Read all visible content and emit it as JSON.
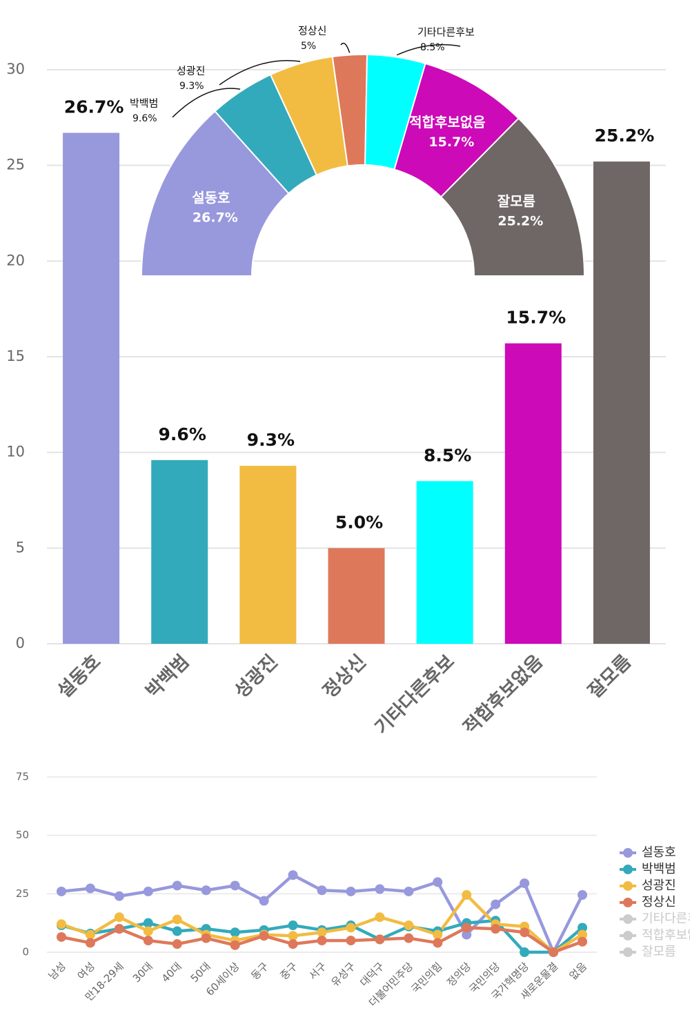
{
  "chart_data": [
    {
      "type": "bar",
      "categories": [
        "설동호",
        "박백범",
        "성광진",
        "정상신",
        "기타다른후보",
        "적합후보없음",
        "잘모름"
      ],
      "values": [
        26.7,
        9.6,
        9.3,
        5.0,
        8.5,
        15.7,
        25.2
      ],
      "value_labels": [
        "26.7%",
        "9.6%",
        "9.3%",
        "5.0%",
        "8.5%",
        "15.7%",
        "25.2%"
      ],
      "colors": [
        "#9898dd",
        "#33aabb",
        "#f2bc42",
        "#de785a",
        "#00ffff",
        "#cc0ab8",
        "#6f6765"
      ],
      "ylim": [
        0,
        30
      ],
      "yticks": [
        0,
        5,
        10,
        15,
        20,
        25,
        30
      ],
      "grid": true
    },
    {
      "type": "pie",
      "shape": "half-donut",
      "categories": [
        "설동호",
        "박백범",
        "성광진",
        "정상신",
        "기타다른후보",
        "적합후보없음",
        "잘모름"
      ],
      "values": [
        26.7,
        9.6,
        9.3,
        5,
        8.5,
        15.7,
        25.2
      ],
      "value_labels": [
        "26.7%",
        "9.6%",
        "9.3%",
        "5%",
        "8.5%",
        "15.7%",
        "25.2%"
      ],
      "colors": [
        "#9898dd",
        "#33aabb",
        "#f2bc42",
        "#de785a",
        "#00ffff",
        "#cc0ab8",
        "#6f6765"
      ]
    },
    {
      "type": "line",
      "categories": [
        "남성",
        "여성",
        "만18-29세",
        "30대",
        "40대",
        "50대",
        "60세이상",
        "동구",
        "중구",
        "서구",
        "유성구",
        "대덕구",
        "더불어민주당",
        "국민의힘",
        "정의당",
        "국민의당",
        "국가혁명당",
        "새로운물결",
        "없음"
      ],
      "series": [
        {
          "name": "설동호",
          "color": "#9898dd",
          "values": [
            26,
            27.3,
            24,
            26,
            28.5,
            26.5,
            28.5,
            22,
            33,
            26.5,
            26,
            27,
            26,
            30,
            7.5,
            20.5,
            29.5,
            0,
            24.5
          ]
        },
        {
          "name": "박백범",
          "color": "#33aabb",
          "values": [
            11.5,
            8,
            10,
            12.5,
            9,
            10,
            8.5,
            9.5,
            11.5,
            9.5,
            11.5,
            5.5,
            11,
            9,
            12.5,
            13.5,
            0,
            0,
            10.5
          ]
        },
        {
          "name": "성광진",
          "color": "#f2bc42",
          "values": [
            12,
            7.5,
            15,
            9,
            14,
            7.5,
            5,
            7.5,
            7,
            8.5,
            10.5,
            15,
            11.5,
            7.5,
            24.5,
            12,
            11,
            0,
            7.5
          ]
        },
        {
          "name": "정상신",
          "color": "#de785a",
          "values": [
            6.5,
            4,
            10,
            5,
            3.5,
            6,
            3,
            7,
            3.5,
            5,
            5,
            5.5,
            6,
            4,
            10.5,
            10,
            8.5,
            0,
            4.5
          ]
        },
        {
          "name": "기타다른후보",
          "color": "#00ffff",
          "visible": false
        },
        {
          "name": "적합후보없음",
          "color": "#cc0ab8",
          "visible": false
        },
        {
          "name": "잘모름",
          "color": "#6f6765",
          "visible": false
        }
      ],
      "ylim": [
        0,
        75
      ],
      "yticks": [
        0,
        25,
        50,
        75
      ],
      "grid": true,
      "legend": "right"
    }
  ]
}
